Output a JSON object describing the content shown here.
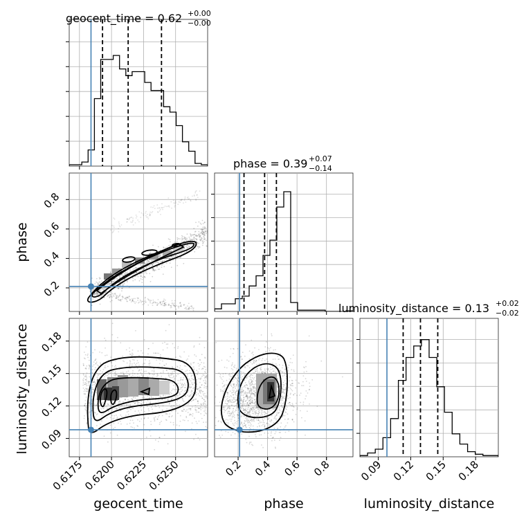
{
  "chart_data": {
    "type": "corner",
    "parameters": [
      "geocent_time",
      "phase",
      "luminosity_distance"
    ],
    "truth": {
      "geocent_time": 0.6184,
      "phase": 0.21,
      "luminosity_distance": 0.098
    },
    "truth_color": "#4682b4",
    "grid": true,
    "titles": [
      {
        "param": "geocent_time",
        "label": "geocent_time = 0.62",
        "plus": "+0.00",
        "minus": "−0.00"
      },
      {
        "param": "phase",
        "label": "phase = 0.39",
        "plus": "+0.07",
        "minus": "−0.14"
      },
      {
        "param": "luminosity_distance",
        "label": "luminosity_distance = 0.13",
        "plus": "+0.02",
        "minus": "−0.02"
      }
    ],
    "axes": {
      "geocent_time": {
        "label": "geocent_time",
        "range": [
          0.6167,
          0.6275
        ],
        "ticks": [
          0.6175,
          0.62,
          0.6225,
          0.625
        ],
        "tick_labels": [
          "0.6175",
          "0.6200",
          "0.6225",
          "0.6250"
        ]
      },
      "phase": {
        "label": "phase",
        "range": [
          0.04,
          0.98
        ],
        "ticks": [
          0.2,
          0.4,
          0.6,
          0.8
        ],
        "tick_labels": [
          "0.2",
          "0.4",
          "0.6",
          "0.8"
        ]
      },
      "luminosity_distance": {
        "label": "luminosity_distance",
        "range": [
          0.073,
          0.201
        ],
        "ticks": [
          0.09,
          0.12,
          0.15,
          0.18
        ],
        "tick_labels": [
          "0.09",
          "0.12",
          "0.15",
          "0.18"
        ]
      }
    },
    "histograms": [
      {
        "param": "geocent_time",
        "quantiles": [
          0.6193,
          0.6213,
          0.6239
        ],
        "bins": [
          0.6167,
          0.6275
        ],
        "counts": [
          0.01,
          0.01,
          0.03,
          0.12,
          0.5,
          0.79,
          0.79,
          0.82,
          0.72,
          0.67,
          0.7,
          0.7,
          0.62,
          0.56,
          0.56,
          0.44,
          0.4,
          0.3,
          0.18,
          0.11,
          0.02,
          0.01
        ]
      },
      {
        "param": "phase",
        "quantiles": [
          0.24,
          0.38,
          0.46
        ],
        "bins": [
          0.04,
          0.98
        ],
        "counts": [
          0.02,
          0.06,
          0.06,
          0.1,
          0.12,
          0.2,
          0.28,
          0.44,
          0.56,
          0.82,
          0.94,
          0.07,
          0.01,
          0.01,
          0.01,
          0.01,
          0,
          0,
          0,
          0.005
        ]
      },
      {
        "param": "luminosity_distance",
        "quantiles": [
          0.113,
          0.129,
          0.145
        ],
        "bins": [
          0.073,
          0.201
        ],
        "counts": [
          0.01,
          0.03,
          0.06,
          0.15,
          0.3,
          0.6,
          0.78,
          0.87,
          0.92,
          0.78,
          0.55,
          0.35,
          0.18,
          0.1,
          0.04,
          0.02,
          0.01,
          0.01
        ]
      }
    ],
    "contour_panels": [
      {
        "x": "geocent_time",
        "y": "phase",
        "center": [
          0.6205,
          0.36
        ]
      },
      {
        "x": "geocent_time",
        "y": "luminosity_distance",
        "center": [
          0.621,
          0.127
        ]
      },
      {
        "x": "phase",
        "y": "luminosity_distance",
        "center": [
          0.42,
          0.133
        ]
      }
    ]
  }
}
